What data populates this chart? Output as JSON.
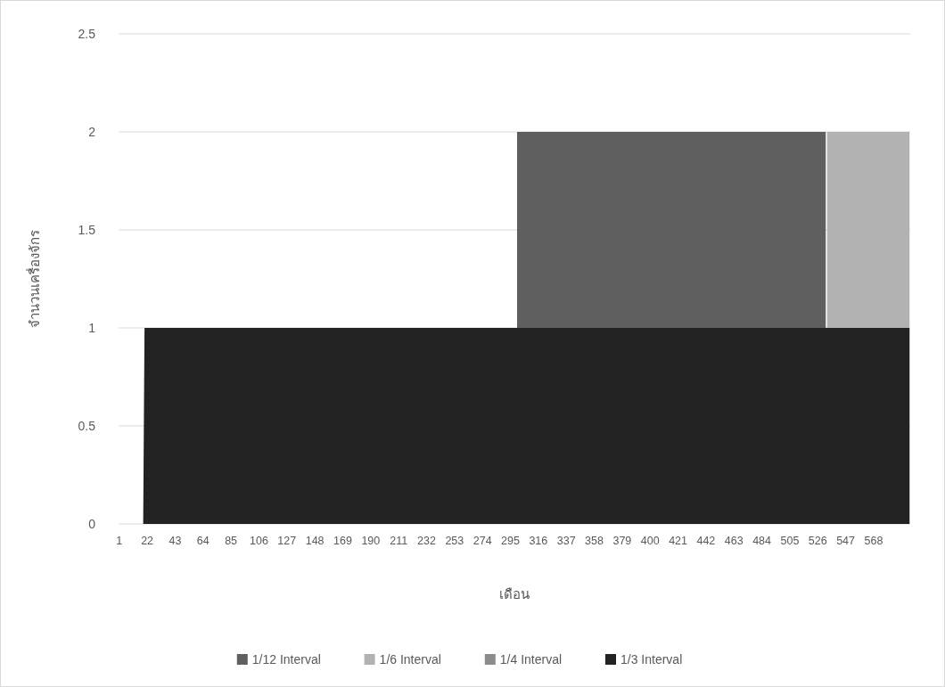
{
  "chart_data": {
    "type": "area",
    "xlabel": "เดือน",
    "ylabel": "จำนวนเครื่องจักร",
    "stacked": true,
    "grid": "y",
    "legend": "bottom",
    "x": [
      1,
      19,
      20,
      299,
      300,
      532,
      533,
      595
    ],
    "xlim": [
      0.5,
      595.5
    ],
    "xticks": [
      1,
      22,
      43,
      64,
      85,
      106,
      127,
      148,
      169,
      190,
      211,
      232,
      253,
      274,
      295,
      316,
      337,
      358,
      379,
      400,
      421,
      442,
      463,
      484,
      505,
      526,
      547,
      568
    ],
    "ylim": [
      0,
      2.5
    ],
    "yticks": [
      0,
      0.5,
      1,
      1.5,
      2,
      2.5
    ],
    "series": [
      {
        "name": "1/3 Interval",
        "color": "#222222",
        "values": [
          0,
          0,
          1,
          1,
          1,
          1,
          1,
          1
        ]
      },
      {
        "name": "1/4 Interval",
        "color": "#8c8c8c",
        "values": [
          null,
          null,
          null,
          null,
          null,
          null,
          null,
          null
        ]
      },
      {
        "name": "1/6 Interval",
        "color": "#b2b2b2",
        "values": [
          null,
          null,
          null,
          null,
          null,
          null,
          1,
          1
        ]
      },
      {
        "name": "1/12 Interval",
        "color": "#5f5f5f",
        "values": [
          null,
          null,
          null,
          null,
          1,
          1,
          null,
          null
        ]
      }
    ]
  }
}
